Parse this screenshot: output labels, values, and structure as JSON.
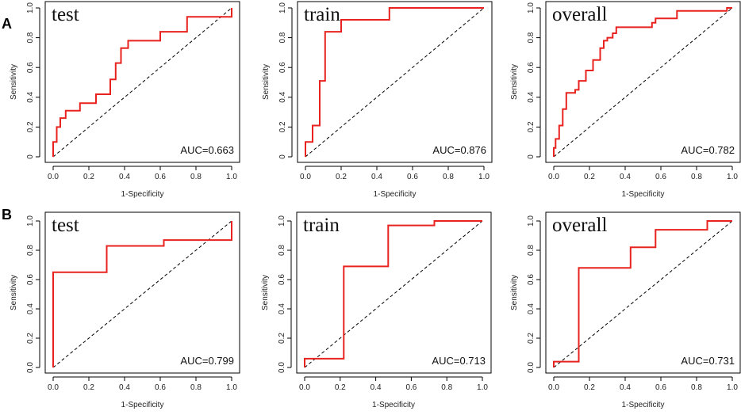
{
  "row_labels": [
    "A",
    "B"
  ],
  "colors": {
    "roc": "#e8231f",
    "axis": "#000000",
    "diagonal": "#000000"
  },
  "chart_data": [
    {
      "type": "line",
      "title": "test",
      "auc_label": "AUC=0.663",
      "xlabel": "1-Specificity",
      "ylabel": "Sensitivity",
      "xlim": [
        0,
        1
      ],
      "ylim": [
        0,
        1
      ],
      "x_ticks": [
        "0.0",
        "0.2",
        "0.4",
        "0.6",
        "0.8",
        "1.0"
      ],
      "y_ticks": [
        "0",
        "0.2",
        "0.4",
        "0.6",
        "0.8",
        "1.0"
      ],
      "x": [
        0,
        0,
        0.02,
        0.02,
        0.04,
        0.04,
        0.07,
        0.07,
        0.15,
        0.15,
        0.24,
        0.24,
        0.32,
        0.32,
        0.35,
        0.35,
        0.38,
        0.38,
        0.42,
        0.42,
        0.45,
        0.45,
        0.6,
        0.6,
        0.75,
        0.75,
        1.0,
        1.0
      ],
      "y": [
        0,
        0.1,
        0.1,
        0.2,
        0.2,
        0.26,
        0.26,
        0.31,
        0.31,
        0.36,
        0.36,
        0.42,
        0.42,
        0.52,
        0.52,
        0.63,
        0.63,
        0.73,
        0.73,
        0.78,
        0.78,
        0.78,
        0.78,
        0.84,
        0.84,
        0.94,
        0.94,
        1.0
      ]
    },
    {
      "type": "line",
      "title": "train",
      "auc_label": "AUC=0.876",
      "xlabel": "1-Specificity",
      "ylabel": "Sensitivity",
      "xlim": [
        0,
        1
      ],
      "ylim": [
        0,
        1
      ],
      "x_ticks": [
        "0.0",
        "0.2",
        "0.4",
        "0.6",
        "0.8",
        "1.0"
      ],
      "y_ticks": [
        "0",
        "0.2",
        "0.4",
        "0.6",
        "0.8",
        "1.0"
      ],
      "x": [
        0,
        0,
        0.04,
        0.04,
        0.08,
        0.08,
        0.11,
        0.11,
        0.15,
        0.15,
        0.2,
        0.2,
        0.47,
        0.47,
        1.0
      ],
      "y": [
        0,
        0.1,
        0.1,
        0.21,
        0.21,
        0.51,
        0.51,
        0.84,
        0.84,
        0.84,
        0.84,
        0.92,
        0.92,
        1.0,
        1.0
      ]
    },
    {
      "type": "line",
      "title": "overall",
      "auc_label": "AUC=0.782",
      "xlabel": "1-Specificity",
      "ylabel": "Sensitivity",
      "xlim": [
        0,
        1
      ],
      "ylim": [
        0,
        1
      ],
      "x_ticks": [
        "0.0",
        "0.2",
        "0.4",
        "0.6",
        "0.8",
        "1.0"
      ],
      "y_ticks": [
        "0",
        "0.2",
        "0.4",
        "0.6",
        "0.8",
        "1.0"
      ],
      "x": [
        0,
        0,
        0.01,
        0.01,
        0.03,
        0.03,
        0.05,
        0.05,
        0.07,
        0.07,
        0.09,
        0.09,
        0.12,
        0.12,
        0.14,
        0.14,
        0.18,
        0.18,
        0.22,
        0.22,
        0.26,
        0.26,
        0.28,
        0.28,
        0.3,
        0.3,
        0.33,
        0.33,
        0.35,
        0.35,
        0.4,
        0.4,
        0.55,
        0.55,
        0.57,
        0.57,
        0.69,
        0.69,
        0.97,
        0.97,
        1.0
      ],
      "y": [
        0,
        0.06,
        0.06,
        0.12,
        0.12,
        0.21,
        0.21,
        0.32,
        0.32,
        0.43,
        0.43,
        0.43,
        0.43,
        0.45,
        0.45,
        0.51,
        0.51,
        0.58,
        0.58,
        0.65,
        0.65,
        0.73,
        0.73,
        0.78,
        0.78,
        0.8,
        0.8,
        0.83,
        0.83,
        0.87,
        0.87,
        0.87,
        0.87,
        0.9,
        0.9,
        0.93,
        0.93,
        0.98,
        0.98,
        1.0,
        1.0
      ]
    },
    {
      "type": "line",
      "title": "test",
      "auc_label": "AUC=0.799",
      "xlabel": "1-Specificity",
      "ylabel": "Sensitivity",
      "xlim": [
        0,
        1
      ],
      "ylim": [
        0,
        1
      ],
      "x_ticks": [
        "0.0",
        "0.2",
        "0.4",
        "0.6",
        "0.8",
        "1.0"
      ],
      "y_ticks": [
        "0.0",
        "0.2",
        "0.4",
        "0.6",
        "0.8",
        "1.0"
      ],
      "x": [
        0,
        0,
        0.3,
        0.3,
        0.62,
        0.62,
        1.0,
        1.0
      ],
      "y": [
        0,
        0.65,
        0.65,
        0.83,
        0.83,
        0.87,
        0.87,
        1.0
      ]
    },
    {
      "type": "line",
      "title": "train",
      "auc_label": "AUC=0.713",
      "xlabel": "1-Specificity",
      "ylabel": "Sensitivity",
      "xlim": [
        0,
        1
      ],
      "ylim": [
        0,
        1
      ],
      "x_ticks": [
        "0.0",
        "0.2",
        "0.4",
        "0.6",
        "0.8",
        "1.0"
      ],
      "y_ticks": [
        "0.0",
        "0.2",
        "0.4",
        "0.6",
        "0.8",
        "1.0"
      ],
      "x": [
        0,
        0,
        0.22,
        0.22,
        0.47,
        0.47,
        0.73,
        0.73,
        1.0,
        1.0
      ],
      "y": [
        0,
        0.06,
        0.06,
        0.69,
        0.69,
        0.97,
        0.97,
        1.0,
        1.0,
        1.0
      ]
    },
    {
      "type": "line",
      "title": "overall",
      "auc_label": "AUC=0.731",
      "xlabel": "1-Specificity",
      "ylabel": "Sensitivity",
      "xlim": [
        0,
        1
      ],
      "ylim": [
        0,
        1
      ],
      "x_ticks": [
        "0.0",
        "0.2",
        "0.4",
        "0.6",
        "0.8",
        "1.0"
      ],
      "y_ticks": [
        "0.0",
        "0.2",
        "0.4",
        "0.6",
        "0.8",
        "1.0"
      ],
      "x": [
        0,
        0,
        0.14,
        0.14,
        0.43,
        0.43,
        0.57,
        0.57,
        0.86,
        0.86,
        1.0
      ],
      "y": [
        0,
        0.04,
        0.04,
        0.68,
        0.68,
        0.82,
        0.82,
        0.94,
        0.94,
        1.0,
        1.0
      ]
    }
  ]
}
